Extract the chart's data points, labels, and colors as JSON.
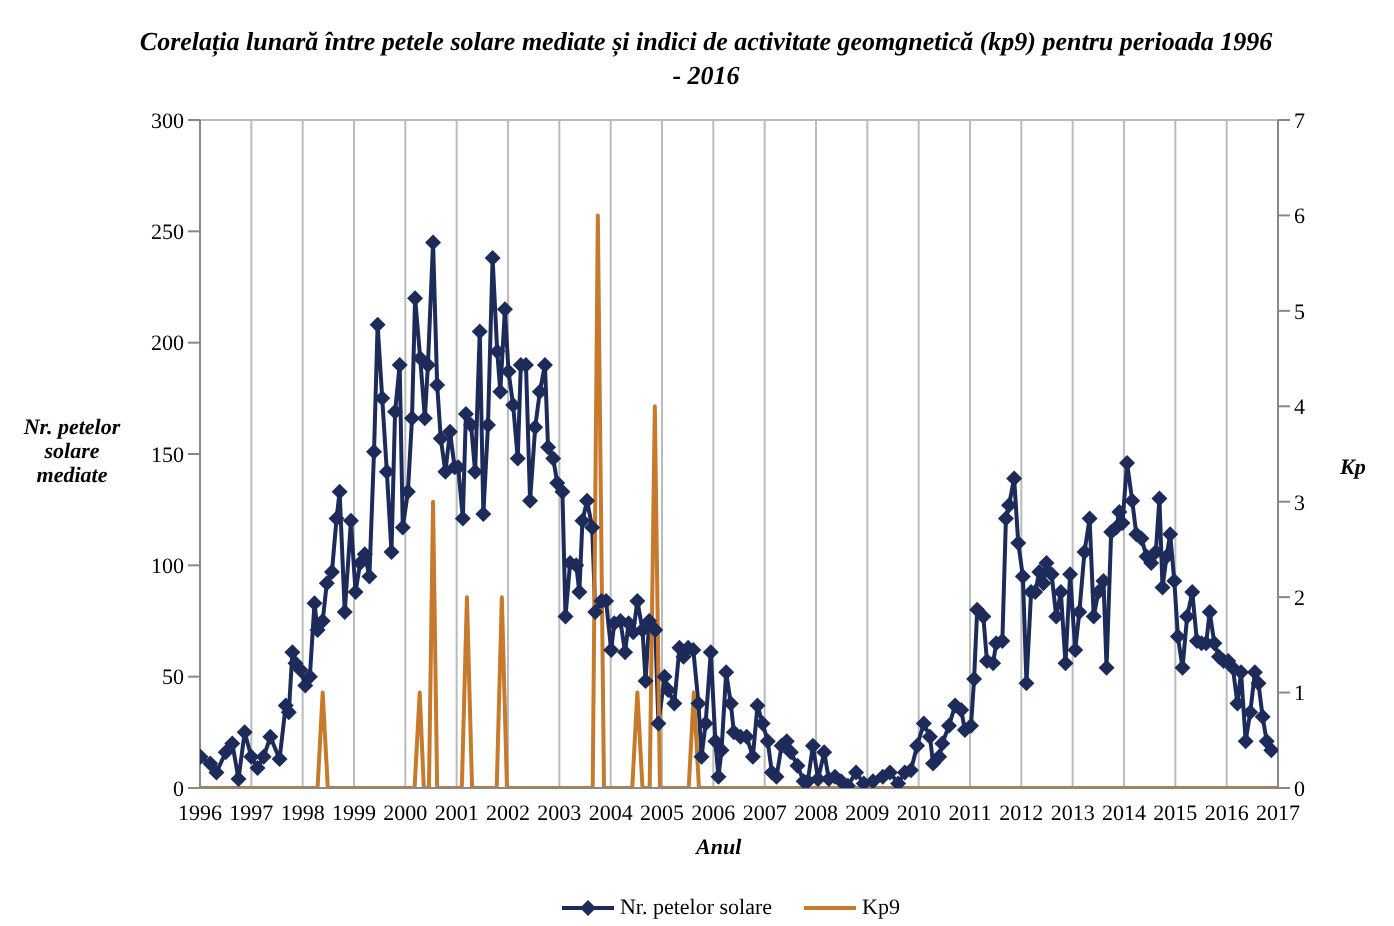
{
  "chart_data": {
    "type": "line",
    "title": "Corelația lunară între petele solare mediate și indici de activitate geomgnetică (kp9) pentru perioada 1996 - 2016",
    "xlabel": "Anul",
    "ylabel": "Nr. petelor solare mediate",
    "y2label": "Kp",
    "xlim": [
      1996,
      2017
    ],
    "xticks": [
      1996,
      1997,
      1998,
      1999,
      2000,
      2001,
      2002,
      2003,
      2004,
      2005,
      2006,
      2007,
      2008,
      2009,
      2010,
      2011,
      2012,
      2013,
      2014,
      2015,
      2016,
      2017
    ],
    "ylim": [
      0,
      300
    ],
    "yticks": [
      0,
      50,
      100,
      150,
      200,
      250,
      300
    ],
    "y2lim": [
      0,
      7
    ],
    "y2ticks": [
      0,
      1,
      2,
      3,
      4,
      5,
      6,
      7
    ],
    "grid": true,
    "legend": "bottom",
    "line_style": "solid",
    "series": [
      {
        "name": "Nr. petelor solare",
        "color": "#1c2b5a",
        "marker": "diamond",
        "x": [
          1996.01,
          1996.2,
          1996.32,
          1996.5,
          1996.63,
          1996.75,
          1996.87,
          1997.0,
          1997.12,
          1997.24,
          1997.37,
          1997.55,
          1997.67,
          1997.73,
          1997.8,
          1997.86,
          1997.96,
          1998.05,
          1998.14,
          1998.23,
          1998.29,
          1998.39,
          1998.47,
          1998.57,
          1998.66,
          1998.72,
          1998.82,
          1998.94,
          1999.03,
          1999.12,
          1999.21,
          1999.3,
          1999.39,
          1999.46,
          1999.55,
          1999.64,
          1999.73,
          1999.8,
          1999.89,
          1999.95,
          2000.05,
          2000.13,
          2000.19,
          2000.29,
          2000.38,
          2000.44,
          2000.54,
          2000.62,
          2000.69,
          2000.78,
          2000.87,
          2000.96,
          2001.03,
          2001.12,
          2001.18,
          2001.28,
          2001.36,
          2001.45,
          2001.52,
          2001.61,
          2001.7,
          2001.79,
          2001.85,
          2001.94,
          2002.01,
          2002.1,
          2002.19,
          2002.25,
          2002.35,
          2002.43,
          2002.53,
          2002.62,
          2002.72,
          2002.78,
          2002.88,
          2002.96,
          2003.06,
          2003.12,
          2003.21,
          2003.33,
          2003.39,
          2003.45,
          2003.54,
          2003.64,
          2003.7,
          2003.82,
          2003.91,
          2004.01,
          2004.07,
          2004.19,
          2004.28,
          2004.35,
          2004.44,
          2004.52,
          2004.62,
          2004.68,
          2004.75,
          2004.87,
          2004.93,
          2005.05,
          2005.12,
          2005.24,
          2005.34,
          2005.42,
          2005.51,
          2005.61,
          2005.71,
          2005.77,
          2005.85,
          2005.95,
          2006.04,
          2006.1,
          2006.16,
          2006.25,
          2006.34,
          2006.4,
          2006.53,
          2006.65,
          2006.77,
          2006.86,
          2006.96,
          2007.06,
          2007.14,
          2007.23,
          2007.33,
          2007.43,
          2007.51,
          2007.64,
          2007.76,
          2007.84,
          2007.94,
          2008.04,
          2008.16,
          2008.25,
          2008.37,
          2008.49,
          2008.62,
          2008.78,
          2008.93,
          2009.11,
          2009.3,
          2009.44,
          2009.6,
          2009.73,
          2009.85,
          2009.97,
          2010.1,
          2010.22,
          2010.28,
          2010.4,
          2010.46,
          2010.59,
          2010.71,
          2010.83,
          2010.9,
          2011.02,
          2011.08,
          2011.14,
          2011.26,
          2011.33,
          2011.45,
          2011.51,
          2011.63,
          2011.7,
          2011.76,
          2011.86,
          2011.94,
          2012.03,
          2012.1,
          2012.19,
          2012.27,
          2012.35,
          2012.43,
          2012.49,
          2012.59,
          2012.68,
          2012.77,
          2012.86,
          2012.95,
          2013.05,
          2013.13,
          2013.23,
          2013.33,
          2013.41,
          2013.5,
          2013.6,
          2013.66,
          2013.75,
          2013.85,
          2013.91,
          2013.97,
          2014.06,
          2014.16,
          2014.24,
          2014.34,
          2014.44,
          2014.53,
          2014.62,
          2014.69,
          2014.75,
          2014.83,
          2014.9,
          2014.98,
          2015.05,
          2015.14,
          2015.23,
          2015.33,
          2015.42,
          2015.51,
          2015.6,
          2015.67,
          2015.76,
          2015.85,
          2015.94,
          2016.03,
          2016.12,
          2016.21,
          2016.28,
          2016.37,
          2016.46,
          2016.55,
          2016.62,
          2016.7,
          2016.78,
          2016.87
        ],
        "values": [
          14,
          11,
          7,
          16,
          20,
          4,
          25,
          14,
          9,
          14,
          23,
          13,
          37,
          34,
          61,
          56,
          53,
          46,
          50,
          83,
          71,
          75,
          92,
          97,
          121,
          133,
          79,
          120,
          88,
          101,
          105,
          95,
          151,
          208,
          175,
          142,
          106,
          169,
          190,
          117,
          133,
          166,
          220,
          193,
          166,
          190,
          245,
          181,
          157,
          142,
          160,
          144,
          144,
          121,
          168,
          163,
          142,
          205,
          123,
          163,
          238,
          196,
          178,
          215,
          187,
          172,
          148,
          190,
          190,
          129,
          162,
          178,
          190,
          153,
          148,
          137,
          133,
          77,
          101,
          100,
          88,
          120,
          129,
          117,
          79,
          84,
          84,
          62,
          74,
          75,
          61,
          74,
          70,
          84,
          71,
          48,
          75,
          71,
          29,
          50,
          44,
          38,
          63,
          59,
          63,
          62,
          38,
          14,
          29,
          61,
          21,
          5,
          17,
          52,
          38,
          25,
          23,
          23,
          14,
          37,
          29,
          21,
          7,
          5,
          19,
          21,
          16,
          10,
          3,
          3,
          19,
          4,
          16,
          4,
          5,
          3,
          1,
          7,
          2,
          3,
          5,
          7,
          2,
          7,
          8,
          19,
          29,
          23,
          11,
          14,
          20,
          28,
          37,
          35,
          26,
          28,
          49,
          80,
          77,
          57,
          56,
          65,
          66,
          121,
          127,
          139,
          110,
          95,
          47,
          88,
          88,
          97,
          92,
          101,
          96,
          77,
          88,
          56,
          96,
          62,
          79,
          106,
          121,
          77,
          88,
          93,
          54,
          115,
          117,
          124,
          119,
          146,
          129,
          114,
          112,
          104,
          101,
          106,
          130,
          90,
          104,
          114,
          93,
          68,
          54,
          77,
          88,
          66,
          65,
          65,
          79,
          65,
          59,
          57,
          57,
          54,
          38,
          52,
          21,
          34,
          52,
          47,
          32,
          21,
          17
        ]
      },
      {
        "name": "Kp9",
        "color": "#c67a2e",
        "marker": "none",
        "axis": "y2",
        "x": [
          1996,
          1998.29,
          1998.39,
          1998.49,
          2000.18,
          2000.28,
          2000.36,
          2000.46,
          2000.54,
          2000.62,
          2001.1,
          2001.2,
          2001.3,
          2001.78,
          2001.88,
          2001.98,
          2003.65,
          2003.75,
          2003.87,
          2004.42,
          2004.52,
          2004.62,
          2004.76,
          2004.86,
          2004.96,
          2005.52,
          2005.62,
          2005.72,
          2017
        ],
        "values": [
          0,
          0,
          1,
          0,
          0,
          1,
          0,
          0,
          3,
          0,
          0,
          2,
          0,
          0,
          2,
          0,
          0,
          6,
          0,
          0,
          1,
          0,
          0,
          4,
          0,
          0,
          1,
          0,
          0
        ]
      }
    ]
  }
}
